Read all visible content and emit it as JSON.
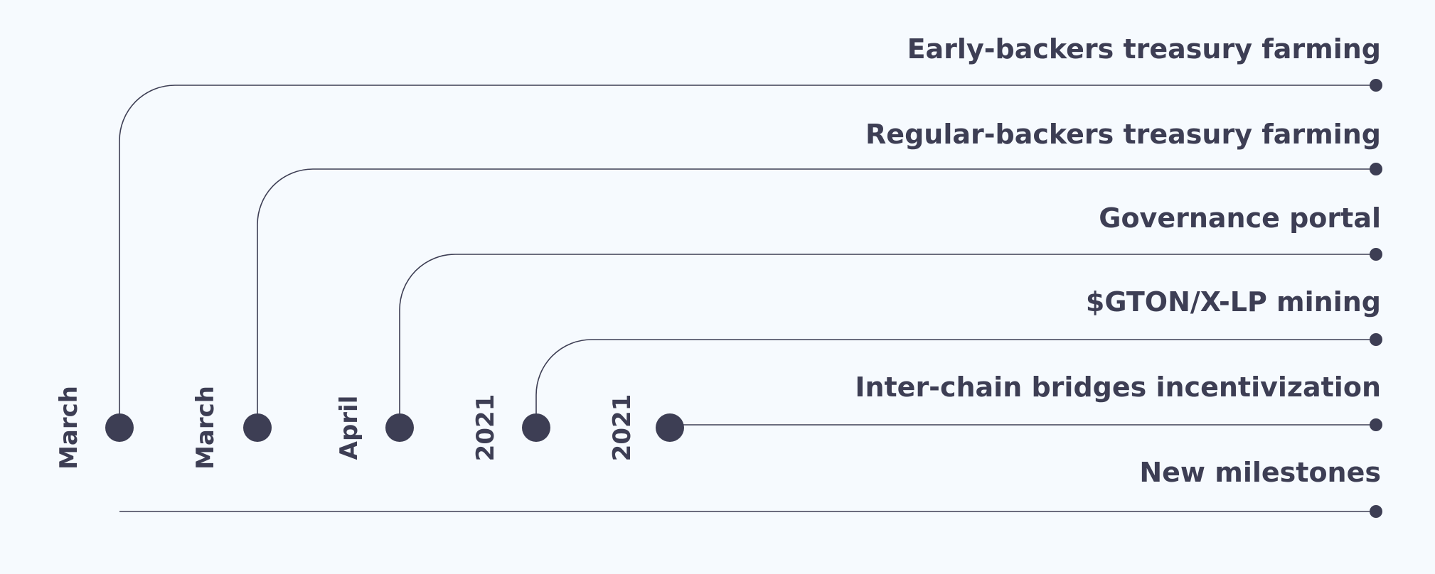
{
  "colors": {
    "background": "#F6FAFE",
    "ink": "#3D3E54"
  },
  "milestones": [
    {
      "label": "Early-backers treasury farming"
    },
    {
      "label": "Regular-backers treasury farming"
    },
    {
      "label": "Governance portal"
    },
    {
      "label": "$GTON/X-LP mining"
    },
    {
      "label": "Inter-chain bridges incentivization"
    },
    {
      "label": "New milestones"
    }
  ],
  "dates": [
    {
      "label": "March"
    },
    {
      "label": "March"
    },
    {
      "label": "April"
    },
    {
      "label": "2021"
    },
    {
      "label": "2021"
    }
  ]
}
